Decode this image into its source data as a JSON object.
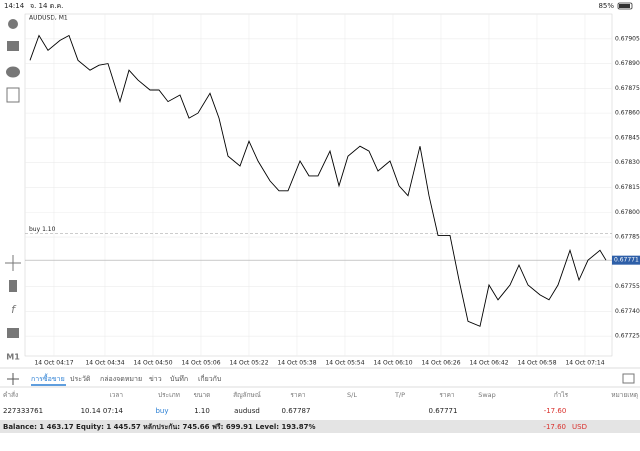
{
  "status_bar": {
    "time": "14:14",
    "date": "จ. 14 ต.ค.",
    "battery": "85%"
  },
  "chart": {
    "type": "line",
    "title": "AUDUSD, M1",
    "color": "#000000",
    "grid": true,
    "x": [
      -8,
      -5,
      -2,
      2,
      5,
      8,
      12,
      15,
      18,
      22,
      25,
      28,
      32,
      35,
      38,
      42,
      45,
      48,
      52,
      55,
      58,
      62,
      65,
      68,
      72,
      75,
      78,
      82,
      85,
      88,
      92,
      95,
      98,
      102,
      105,
      108,
      112,
      115,
      118,
      122,
      125,
      128,
      132,
      135,
      138,
      142,
      145,
      148,
      152,
      155,
      158,
      162,
      165,
      168,
      172,
      175,
      178,
      182,
      184
    ],
    "values": [
      0.67892,
      0.67907,
      0.67898,
      0.67904,
      0.67907,
      0.67892,
      0.67886,
      0.67889,
      0.6789,
      0.67867,
      0.67886,
      0.6788,
      0.67874,
      0.67874,
      0.67867,
      0.67871,
      0.67857,
      0.6786,
      0.67872,
      0.67857,
      0.67834,
      0.67828,
      0.67843,
      0.67831,
      0.67819,
      0.67813,
      0.67813,
      0.67831,
      0.67822,
      0.67822,
      0.67837,
      0.67816,
      0.67834,
      0.6784,
      0.67837,
      0.67825,
      0.67831,
      0.67816,
      0.6781,
      0.6784,
      0.6781,
      0.67786,
      0.67786,
      0.67759,
      0.67734,
      0.67731,
      0.67756,
      0.67747,
      0.67756,
      0.67768,
      0.67756,
      0.6775,
      0.67747,
      0.67756,
      0.67777,
      0.67759,
      0.67771,
      0.67777,
      0.67771
    ],
    "xlim": [
      -9,
      186
    ],
    "xticks": [
      {
        "value": 0,
        "label": "14 Oct 04:17"
      },
      {
        "value": 17,
        "label": "14 Oct 04:34"
      },
      {
        "value": 33,
        "label": "14 Oct 04:50"
      },
      {
        "value": 49,
        "label": "14 Oct 05:06"
      },
      {
        "value": 65,
        "label": "14 Oct 05:22"
      },
      {
        "value": 81,
        "label": "14 Oct 05:38"
      },
      {
        "value": 97,
        "label": "14 Oct 05:54"
      },
      {
        "value": 113,
        "label": "14 Oct 06:10"
      },
      {
        "value": 129,
        "label": "14 Oct 06:26"
      },
      {
        "value": 145,
        "label": "14 Oct 06:42"
      },
      {
        "value": 161,
        "label": "14 Oct 06:58"
      },
      {
        "value": 177,
        "label": "14 Oct 07:14"
      }
    ],
    "ylim": [
      0.67713,
      0.6792
    ],
    "yticks": [
      0.67905,
      {
        "value": 0.6789,
        "label": "0.67890"
      },
      0.67875,
      {
        "value": 0.6786,
        "label": "0.67860"
      },
      0.67845,
      {
        "value": 0.6783,
        "label": "0.67830"
      },
      0.67815,
      {
        "value": 0.678,
        "label": "0.67800"
      },
      0.67785,
      0.67755,
      {
        "value": 0.6774,
        "label": "0.67740"
      },
      0.67725
    ],
    "order_line": {
      "label": "buy 1.10",
      "value": 0.67787
    },
    "current_price": 0.67771
  },
  "tabs": [
    "การซื้อขาย",
    "ประวัติ",
    "กล่องจดหมาย",
    "ข่าว",
    "บันทึก",
    "เกี่ยวกับ"
  ],
  "table": {
    "header": [
      "คำสั่ง",
      "เวลา",
      "ประเภท",
      "ขนาด",
      "สัญลักษณ์",
      "ราคา",
      "S/L",
      "T/P",
      "ราคา",
      "Swap",
      "กำไร",
      "หมายเหตุ"
    ],
    "row": {
      "order": "227333761",
      "time": "10.14 07:14",
      "type": "buy",
      "size": "1.10",
      "symbol": "audusd",
      "open_price": "0.67787",
      "current_price": "0.67771",
      "profit": "-17.60"
    }
  },
  "footer": {
    "summary": "Balance: 1 463.17 Equity: 1 445.57 หลักประกัน: 745.66 ฟรี: 699.91 Level: 193.87%",
    "profit": "-17.60",
    "currency": "USD"
  }
}
